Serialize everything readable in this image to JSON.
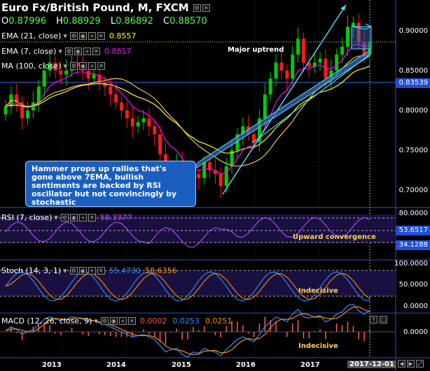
{
  "title": "Euro Fx/British Pound, M, FXCM",
  "ohlc": {
    "o_label": "O",
    "o": "0.87996",
    "h_label": "H",
    "h": "0.88929",
    "l_label": "L",
    "l": "0.86892",
    "c_label": "C",
    "c": "0.88570"
  },
  "indicators": {
    "ema21": {
      "label": "EMA (21, close)",
      "value": "0.8557",
      "color": "#ffff00"
    },
    "ema7": {
      "label": "EMA (7, close)",
      "value": "0.8817",
      "color": "#ff00ff"
    },
    "ma100": {
      "label": "MA (100, close)"
    }
  },
  "annotations": {
    "major_uptrend": "Major uptrend",
    "callout": "Hammer props up rallies that's gone above 7EMA, bullish sentiments are backed by RSI oscillator but not convincingly by stochastic",
    "upward_convergence": "Upward convergence",
    "indecisive_stoch": "Indecisive",
    "indecisive_macd": "Indecisive"
  },
  "rsi": {
    "label": "RSI (7, close)",
    "value": "58.3377",
    "levels": {
      "top": "80.0000",
      "current": "53.6517",
      "low": "34.1288"
    }
  },
  "stoch": {
    "label": "Stoch (14, 3, 1)",
    "k": "55.4730",
    "d": "50.6356",
    "levels": [
      "100.0000",
      "50.0000",
      "0.0000"
    ]
  },
  "macd": {
    "label": "MACD (12, 26, close, 9)",
    "hist": "0.0002",
    "macd": "0.0253",
    "signal": "0.0251",
    "zero": "0.0000"
  },
  "price_axis": {
    "ticks": [
      "0.90000",
      "0.85000",
      "0.80000",
      "0.75000",
      "0.70000"
    ],
    "marker": "0.83539"
  },
  "x_axis": {
    "labels": [
      "2013",
      "2014",
      "2015",
      "2016",
      "2017"
    ],
    "current": "2017-12-01"
  },
  "colors": {
    "up": "#00cc00",
    "down": "#ff1a1a",
    "ema21": "#ffff00",
    "ema7": "#ff00ff",
    "ma100": "#e8c84a",
    "trend": "#55d7ff",
    "rsi": "#b04cff",
    "stoch_k": "#2f8cff",
    "stoch_d": "#ff8c00",
    "macd_line": "#2f8cff",
    "signal_line": "#ff8c00"
  },
  "chart_data": {
    "type": "candlestick",
    "y_range": [
      0.685,
      0.925
    ],
    "x_range_months": [
      "2012-06",
      "2017-12"
    ],
    "title": "Euro Fx/British Pound, M, FXCM",
    "series": [
      {
        "name": "EMA (21, close)",
        "color": "#ffff00"
      },
      {
        "name": "EMA (7, close)",
        "color": "#ff00ff"
      },
      {
        "name": "MA (100, close)",
        "color": "#e8c84a"
      }
    ]
  }
}
